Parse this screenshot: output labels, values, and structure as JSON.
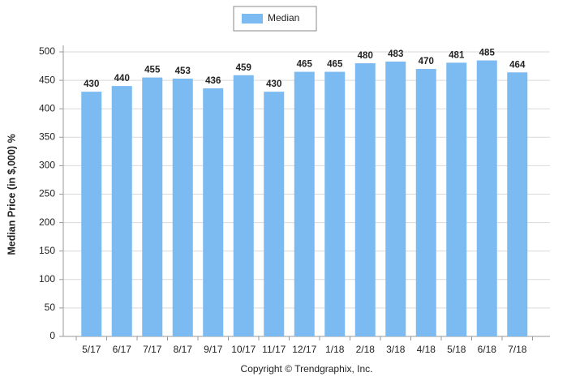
{
  "chart_data": {
    "type": "bar",
    "categories": [
      "5/17",
      "6/17",
      "7/17",
      "8/17",
      "9/17",
      "10/17",
      "11/17",
      "12/17",
      "1/18",
      "2/18",
      "3/18",
      "4/18",
      "5/18",
      "6/18",
      "7/18"
    ],
    "series": [
      {
        "name": "Median",
        "color": "#7cbaf2",
        "values": [
          430,
          440,
          455,
          453,
          436,
          459,
          430,
          465,
          465,
          480,
          483,
          470,
          481,
          485,
          464
        ]
      }
    ],
    "y_label": "Median Price (in $,000) %",
    "footer": "Copyright © Trendgraphix, Inc.",
    "ylim": [
      0,
      500
    ],
    "yticks": [
      0,
      50,
      100,
      150,
      200,
      250,
      300,
      350,
      400,
      450,
      500
    ],
    "grid": true,
    "legend": "top"
  }
}
